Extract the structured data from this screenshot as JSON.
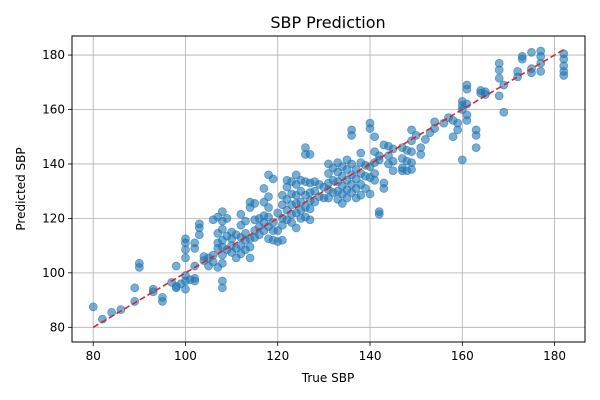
{
  "chart_data": {
    "type": "scatter",
    "title": "SBP Prediction",
    "xlabel": "True SBP",
    "ylabel": "Predicted SBP",
    "xlim": [
      75.4,
      186.6
    ],
    "ylim": [
      74.6,
      187.0
    ],
    "xticks": [
      80,
      100,
      120,
      140,
      160,
      180
    ],
    "yticks": [
      80,
      100,
      120,
      140,
      160,
      180
    ],
    "grid": true,
    "colors": {
      "points": "#1f77b4",
      "reference_line": "#d62728",
      "grid": "#b0b0b0",
      "axes": "#000000"
    },
    "point_alpha": 0.6,
    "reference_line": {
      "style": "dashed",
      "x": [
        80,
        182
      ],
      "y": [
        80,
        182
      ]
    },
    "series": [
      {
        "values": [
          [
            80,
            87.5
          ],
          [
            82,
            83
          ],
          [
            84,
            85.5
          ],
          [
            86,
            86.5
          ],
          [
            89,
            94.5
          ],
          [
            89,
            89.5
          ],
          [
            90,
            103.5
          ],
          [
            90,
            102
          ],
          [
            93,
            94
          ],
          [
            93,
            93
          ],
          [
            95,
            91
          ],
          [
            95,
            89.5
          ],
          [
            97,
            96.5
          ],
          [
            98,
            95
          ],
          [
            98,
            94.5
          ],
          [
            98,
            102.5
          ],
          [
            99,
            96
          ],
          [
            100,
            112.5
          ],
          [
            100,
            111
          ],
          [
            100,
            108.5
          ],
          [
            100,
            105.5
          ],
          [
            100,
            99
          ],
          [
            100,
            97
          ],
          [
            100,
            94
          ],
          [
            101,
            97.5
          ],
          [
            102,
            98
          ],
          [
            102,
            97
          ],
          [
            102,
            102.5
          ],
          [
            102,
            111
          ],
          [
            102,
            109
          ],
          [
            103,
            118
          ],
          [
            103,
            116.5
          ],
          [
            103,
            114
          ],
          [
            104,
            106
          ],
          [
            104,
            104.5
          ],
          [
            105,
            102.5
          ],
          [
            105,
            105.5
          ],
          [
            106,
            106.5
          ],
          [
            106,
            104
          ],
          [
            106,
            119.5
          ],
          [
            107,
            120.5
          ],
          [
            107,
            114.5
          ],
          [
            107,
            111
          ],
          [
            107,
            109
          ],
          [
            107,
            102
          ],
          [
            108,
            122.5
          ],
          [
            108,
            119
          ],
          [
            108,
            116
          ],
          [
            108,
            112
          ],
          [
            108,
            109.5
          ],
          [
            108,
            106.5
          ],
          [
            108,
            103.5
          ],
          [
            108,
            97
          ],
          [
            108,
            94.5
          ],
          [
            109,
            120
          ],
          [
            109,
            113.5
          ],
          [
            109,
            108.5
          ],
          [
            110,
            115
          ],
          [
            110,
            112.5
          ],
          [
            110,
            110
          ],
          [
            110,
            107.5
          ],
          [
            111,
            114
          ],
          [
            111,
            109
          ],
          [
            111,
            105.5
          ],
          [
            112,
            121.5
          ],
          [
            112,
            117.5
          ],
          [
            112,
            113
          ],
          [
            112,
            110
          ],
          [
            112,
            107
          ],
          [
            113,
            119
          ],
          [
            113,
            114.5
          ],
          [
            113,
            112
          ],
          [
            113,
            108.5
          ],
          [
            114,
            126
          ],
          [
            114,
            124
          ],
          [
            114,
            112.5
          ],
          [
            114,
            109.5
          ],
          [
            114,
            105.5
          ],
          [
            115,
            125.5
          ],
          [
            115,
            119.5
          ],
          [
            115,
            115.5
          ],
          [
            115,
            113
          ],
          [
            116,
            120
          ],
          [
            116,
            117
          ],
          [
            116,
            114
          ],
          [
            117,
            131
          ],
          [
            117,
            126
          ],
          [
            117,
            121
          ],
          [
            117,
            118.5
          ],
          [
            117,
            115.5
          ],
          [
            118,
            136
          ],
          [
            118,
            128
          ],
          [
            118,
            124
          ],
          [
            118,
            120.5
          ],
          [
            118,
            117
          ],
          [
            118,
            112.5
          ],
          [
            119,
            134.5
          ],
          [
            119,
            118.5
          ],
          [
            119,
            115.5
          ],
          [
            119,
            112
          ],
          [
            120,
            122
          ],
          [
            120,
            115.5
          ],
          [
            120,
            111.5
          ],
          [
            121,
            128.5
          ],
          [
            121,
            125
          ],
          [
            121,
            120
          ],
          [
            121,
            117.5
          ],
          [
            121,
            112
          ],
          [
            122,
            134
          ],
          [
            122,
            131.5
          ],
          [
            122,
            127
          ],
          [
            122,
            123
          ],
          [
            122,
            119.5
          ],
          [
            123,
            133.5
          ],
          [
            123,
            129
          ],
          [
            123,
            125
          ],
          [
            123,
            121.5
          ],
          [
            123,
            118.5
          ],
          [
            124,
            136
          ],
          [
            124,
            132.5
          ],
          [
            124,
            128.5
          ],
          [
            124,
            125.5
          ],
          [
            124,
            122
          ],
          [
            124,
            116.5
          ],
          [
            125,
            134
          ],
          [
            125,
            130
          ],
          [
            125,
            126
          ],
          [
            125,
            123
          ],
          [
            125,
            120
          ],
          [
            126,
            146
          ],
          [
            126,
            143.5
          ],
          [
            126,
            133.5
          ],
          [
            126,
            128.5
          ],
          [
            126,
            124
          ],
          [
            126,
            120.5
          ],
          [
            127,
            143.5
          ],
          [
            127,
            133
          ],
          [
            127,
            129.5
          ],
          [
            127,
            126.5
          ],
          [
            127,
            123.5
          ],
          [
            127,
            119.5
          ],
          [
            128,
            133.5
          ],
          [
            128,
            130
          ],
          [
            128,
            126
          ],
          [
            129,
            132.5
          ],
          [
            129,
            128
          ],
          [
            130,
            131.5
          ],
          [
            130,
            127.5
          ],
          [
            131,
            140
          ],
          [
            131,
            136.5
          ],
          [
            131,
            133
          ],
          [
            131,
            130.5
          ],
          [
            131,
            127.5
          ],
          [
            132,
            138.5
          ],
          [
            132,
            134
          ],
          [
            132,
            129.5
          ],
          [
            133,
            140.5
          ],
          [
            133,
            137
          ],
          [
            133,
            133.5
          ],
          [
            133,
            130
          ],
          [
            133,
            127
          ],
          [
            134,
            139
          ],
          [
            134,
            135.5
          ],
          [
            134,
            132
          ],
          [
            134,
            129
          ],
          [
            134,
            125.5
          ],
          [
            135,
            141.5
          ],
          [
            135,
            138
          ],
          [
            135,
            134
          ],
          [
            135,
            130.5
          ],
          [
            135,
            127.5
          ],
          [
            136,
            152.5
          ],
          [
            136,
            150.5
          ],
          [
            136,
            140
          ],
          [
            136,
            136
          ],
          [
            136,
            132.5
          ],
          [
            136,
            129.5
          ],
          [
            137,
            138
          ],
          [
            137,
            134.5
          ],
          [
            137,
            131
          ],
          [
            137,
            127.5
          ],
          [
            138,
            144
          ],
          [
            138,
            140.5
          ],
          [
            138,
            136.5
          ],
          [
            138,
            132.5
          ],
          [
            138,
            128.5
          ],
          [
            139,
            139.5
          ],
          [
            139,
            135.5
          ],
          [
            139,
            131
          ],
          [
            140,
            155
          ],
          [
            140,
            153
          ],
          [
            140,
            139
          ],
          [
            140,
            135
          ],
          [
            140,
            129
          ],
          [
            141,
            150
          ],
          [
            141,
            144.5
          ],
          [
            141,
            140.5
          ],
          [
            141,
            136.5
          ],
          [
            141,
            134
          ],
          [
            142,
            143
          ],
          [
            142,
            141.5
          ],
          [
            142,
            122.5
          ],
          [
            142,
            121.5
          ],
          [
            143,
            147
          ],
          [
            143,
            133
          ],
          [
            143,
            131
          ],
          [
            144,
            146.5
          ],
          [
            144,
            143
          ],
          [
            144,
            140
          ],
          [
            145,
            145.5
          ],
          [
            145,
            141
          ],
          [
            145,
            137.5
          ],
          [
            147,
            146
          ],
          [
            147,
            142
          ],
          [
            147,
            138.5
          ],
          [
            147,
            137.5
          ],
          [
            148,
            145
          ],
          [
            148,
            141
          ],
          [
            148,
            137.5
          ],
          [
            149,
            152.5
          ],
          [
            149,
            148.5
          ],
          [
            149,
            144.5
          ],
          [
            149,
            140.5
          ],
          [
            149,
            138
          ],
          [
            150,
            150.5
          ],
          [
            151,
            146
          ],
          [
            151,
            143.5
          ],
          [
            152,
            149
          ],
          [
            153,
            151.5
          ],
          [
            154,
            153
          ],
          [
            154,
            155.5
          ],
          [
            156,
            155
          ],
          [
            157,
            157
          ],
          [
            158,
            156
          ],
          [
            158,
            150
          ],
          [
            159,
            155
          ],
          [
            159,
            152.5
          ],
          [
            160,
            163
          ],
          [
            160,
            161.5
          ],
          [
            160,
            160
          ],
          [
            160,
            141.5
          ],
          [
            161,
            169
          ],
          [
            161,
            167.5
          ],
          [
            161,
            162
          ],
          [
            161,
            158
          ],
          [
            161,
            156
          ],
          [
            163,
            152.5
          ],
          [
            163,
            150.5
          ],
          [
            163,
            146
          ],
          [
            164,
            167
          ],
          [
            164,
            166
          ],
          [
            165,
            165.5
          ],
          [
            165,
            166.5
          ],
          [
            168,
            177
          ],
          [
            168,
            174.5
          ],
          [
            168,
            171.5
          ],
          [
            168,
            165
          ],
          [
            169,
            169
          ],
          [
            169,
            159
          ],
          [
            172,
            174
          ],
          [
            172,
            172
          ],
          [
            173,
            179.5
          ],
          [
            173,
            178.5
          ],
          [
            175,
            181
          ],
          [
            175,
            175
          ],
          [
            175,
            173.5
          ],
          [
            177,
            181.5
          ],
          [
            177,
            179.5
          ],
          [
            177,
            177
          ],
          [
            177,
            174
          ],
          [
            182,
            180.5
          ],
          [
            182,
            178.5
          ],
          [
            182,
            176
          ],
          [
            182,
            174
          ],
          [
            182,
            172.5
          ]
        ]
      }
    ]
  }
}
